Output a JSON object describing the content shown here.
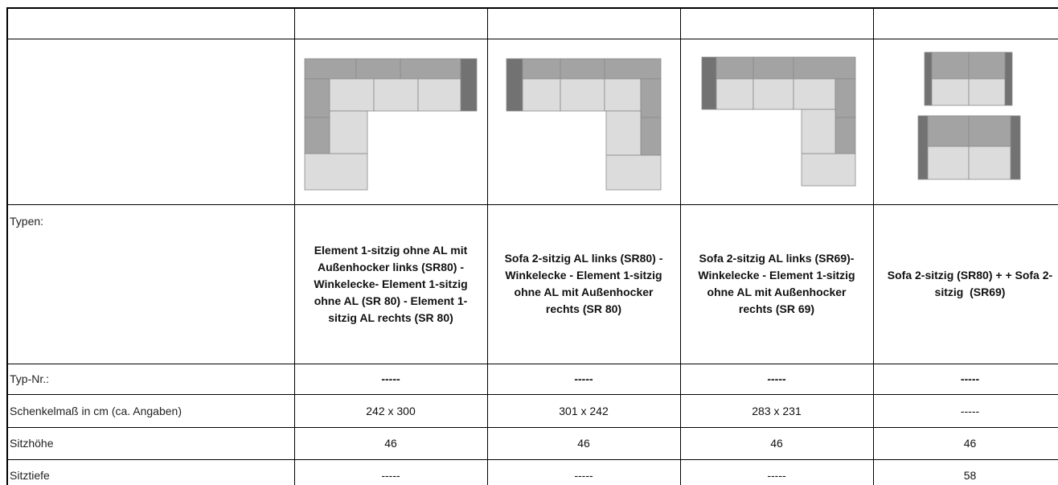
{
  "table": {
    "rows": [
      {
        "label": "Typen:",
        "cells": [
          "Element 1-sitzig ohne AL mit Außenhocker links (SR80) - Winkelecke- Element 1-sitzig ohne AL (SR 80) - Element 1-sitzig AL rechts (SR 80)",
          "Sofa 2-sitzig AL links (SR80) - Winkelecke - Element 1-sitzig ohne AL mit Außenhocker rechts (SR 80)",
          "Sofa 2-sitzig AL links (SR69)- Winkelecke - Element 1-sitzig ohne AL mit Außenhocker rechts (SR 69)",
          "Sofa 2-sitzig (SR80) + + Sofa 2-sitzig  (SR69)"
        ]
      },
      {
        "label": "Typ-Nr.:",
        "cells": [
          "-----",
          "-----",
          "-----",
          "-----"
        ]
      },
      {
        "label": "Schenkelmaß in cm (ca. Angaben)",
        "cells": [
          "242 x 300",
          "301 x 242",
          "283 x 231",
          "-----"
        ]
      },
      {
        "label": "Sitzhöhe",
        "cells": [
          "46",
          "46",
          "46",
          "46"
        ]
      },
      {
        "label": "Sitztiefe",
        "cells": [
          "-----",
          "-----",
          "-----",
          "58"
        ]
      }
    ]
  }
}
